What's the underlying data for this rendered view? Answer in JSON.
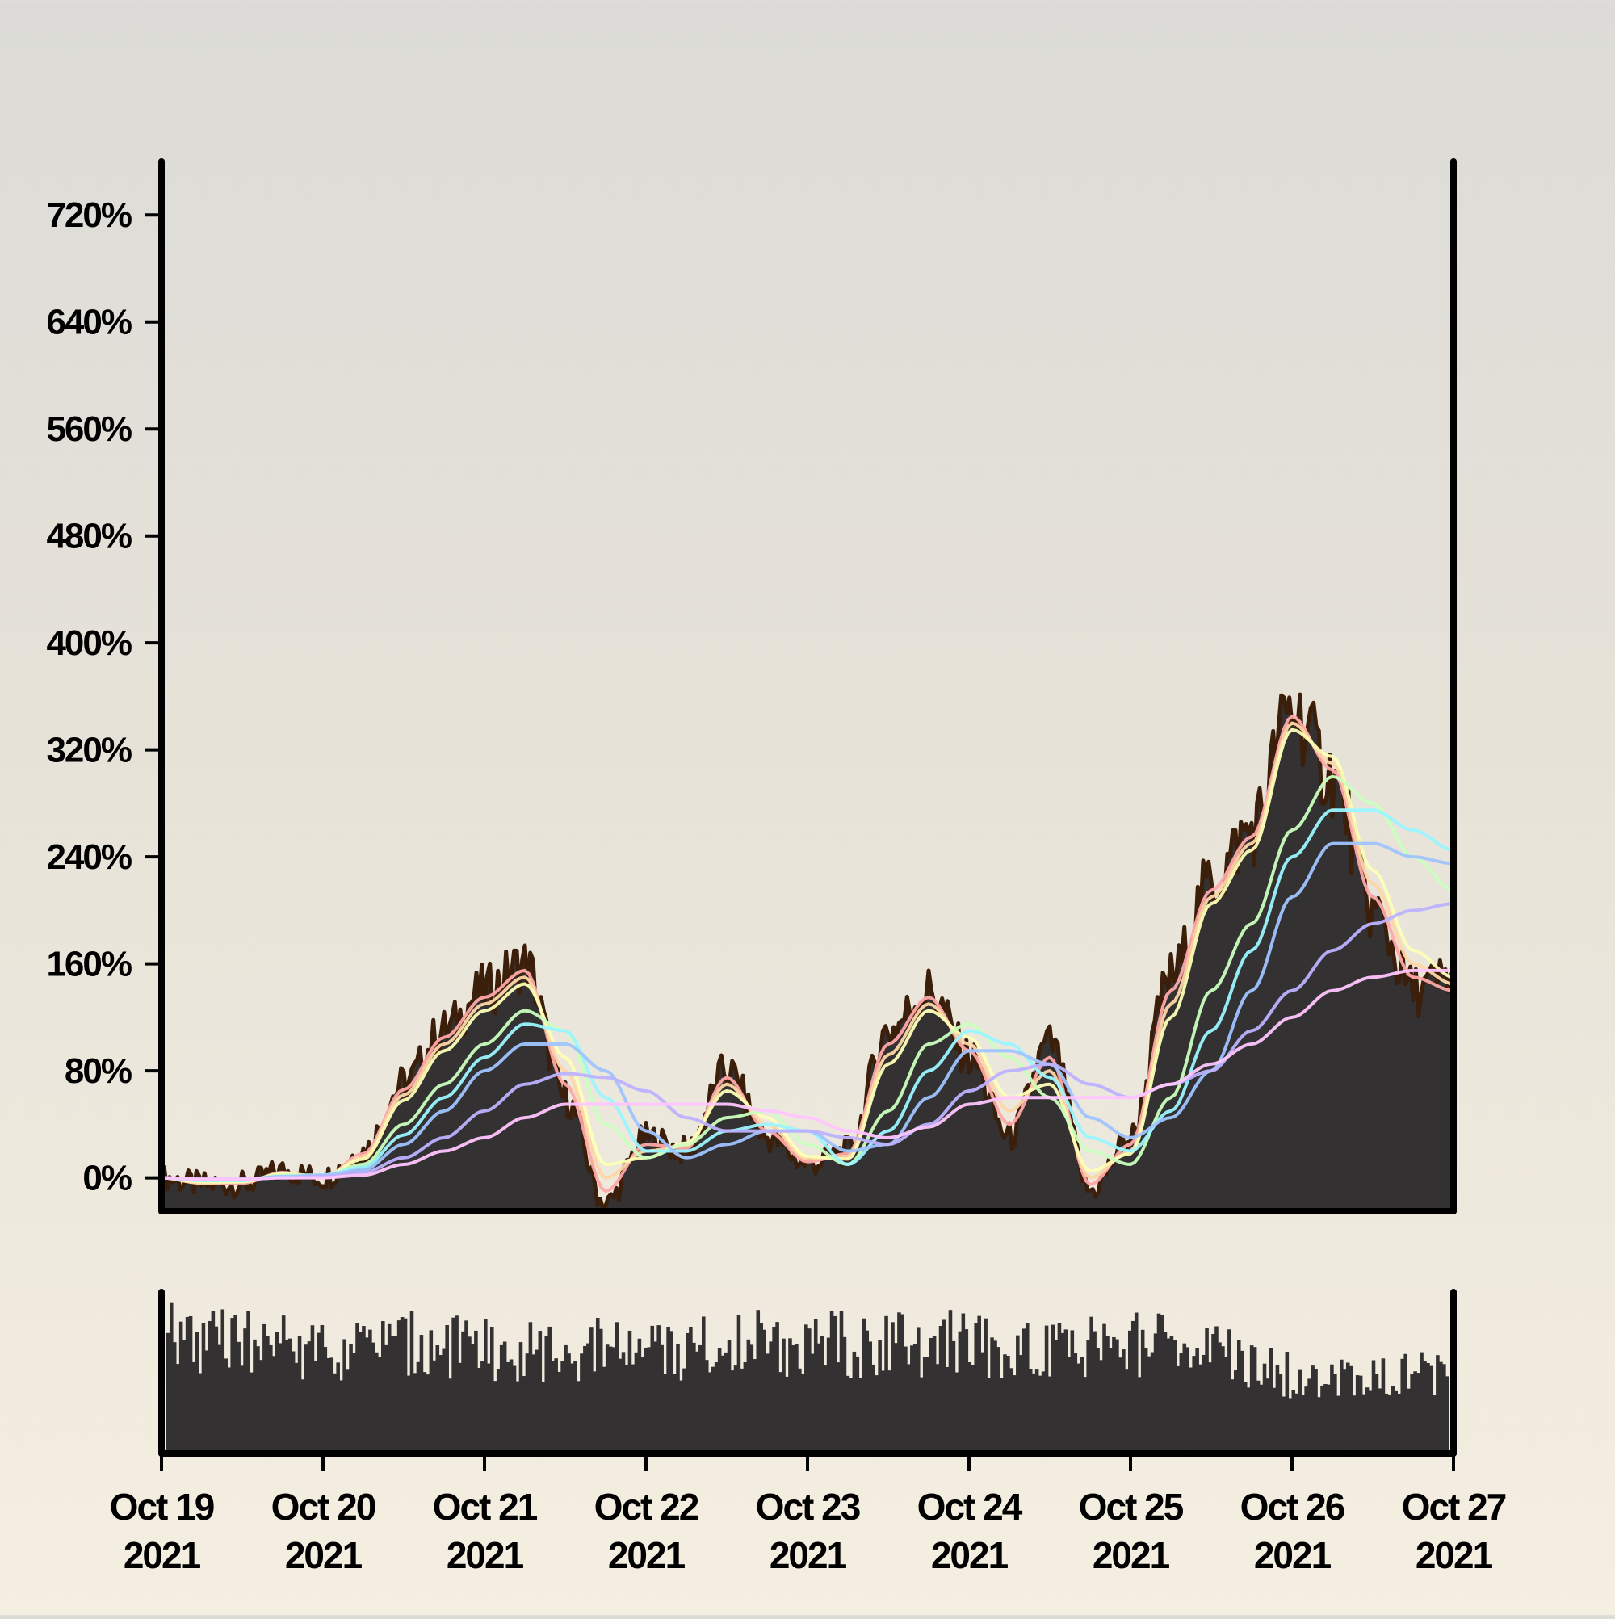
{
  "chart_data": [
    {
      "type": "area",
      "panel": "price",
      "title": "",
      "xlabel": "",
      "ylabel": "",
      "ylim": [
        -25,
        760
      ],
      "y_ticks": [
        0,
        80,
        160,
        240,
        320,
        400,
        480,
        560,
        640,
        720
      ],
      "y_tick_labels": [
        "0%",
        "80%",
        "160%",
        "240%",
        "320%",
        "400%",
        "480%",
        "560%",
        "640%",
        "720%"
      ],
      "grid": false,
      "legend": "none",
      "xlim": [
        "2021-10-19",
        "2021-10-27"
      ],
      "x_ticks": [
        "2021-10-19",
        "2021-10-20",
        "2021-10-21",
        "2021-10-22",
        "2021-10-23",
        "2021-10-24",
        "2021-10-25",
        "2021-10-26",
        "2021-10-27"
      ],
      "x_tick_labels": [
        [
          "Oct 19",
          "2021"
        ],
        [
          "Oct 20",
          "2021"
        ],
        [
          "Oct 21",
          "2021"
        ],
        [
          "Oct 22",
          "2021"
        ],
        [
          "Oct 23",
          "2021"
        ],
        [
          "Oct 24",
          "2021"
        ],
        [
          "Oct 25",
          "2021"
        ],
        [
          "Oct 26",
          "2021"
        ],
        [
          "Oct 27",
          "2021"
        ]
      ],
      "area_color": "#333132",
      "area_edge_color": "#3b1f0a",
      "series_colors": [
        "#ffa8a8",
        "#ffd6a5",
        "#fdffb6",
        "#caffbf",
        "#9bf6ff",
        "#a0c4ff",
        "#bdb2ff",
        "#ffc6ff"
      ],
      "x_days": [
        0,
        0.25,
        0.5,
        0.75,
        1,
        1.25,
        1.5,
        1.75,
        2,
        2.25,
        2.5,
        2.75,
        3,
        3.25,
        3.5,
        3.75,
        4,
        4.25,
        4.5,
        4.75,
        5,
        5.25,
        5.5,
        5.75,
        6,
        6.25,
        6.5,
        6.75,
        7,
        7.25,
        7.5,
        7.75,
        8
      ],
      "values": [
        0,
        -5,
        -5,
        5,
        0,
        20,
        70,
        110,
        140,
        160,
        60,
        -20,
        30,
        20,
        80,
        30,
        10,
        20,
        110,
        140,
        90,
        30,
        100,
        -10,
        30,
        150,
        220,
        260,
        350,
        300,
        200,
        140,
        150
      ],
      "moving_averages": [
        {
          "values": [
            0,
            -4,
            -4,
            4,
            0,
            18,
            66,
            105,
            135,
            155,
            70,
            -10,
            25,
            22,
            75,
            35,
            12,
            18,
            100,
            135,
            95,
            40,
            90,
            -5,
            25,
            140,
            215,
            255,
            345,
            305,
            210,
            150,
            140
          ]
        },
        {
          "values": [
            0,
            -4,
            -3,
            3,
            0,
            16,
            62,
            100,
            130,
            150,
            80,
            0,
            20,
            24,
            70,
            40,
            14,
            16,
            92,
            130,
            100,
            50,
            80,
            0,
            20,
            130,
            210,
            250,
            340,
            310,
            220,
            160,
            145
          ]
        },
        {
          "values": [
            0,
            -3,
            -3,
            3,
            1,
            14,
            58,
            95,
            125,
            145,
            90,
            10,
            15,
            26,
            65,
            45,
            16,
            14,
            85,
            125,
            105,
            60,
            70,
            5,
            18,
            120,
            205,
            245,
            335,
            315,
            230,
            170,
            150
          ]
        },
        {
          "values": [
            0,
            -2,
            -2,
            2,
            2,
            10,
            40,
            70,
            100,
            125,
            110,
            40,
            15,
            25,
            45,
            50,
            25,
            10,
            50,
            100,
            115,
            90,
            60,
            20,
            10,
            60,
            140,
            190,
            260,
            300,
            280,
            240,
            215
          ]
        },
        {
          "values": [
            0,
            -2,
            -2,
            1,
            2,
            8,
            32,
            60,
            90,
            115,
            110,
            60,
            20,
            20,
            35,
            40,
            35,
            10,
            35,
            80,
            110,
            100,
            75,
            30,
            20,
            50,
            110,
            170,
            240,
            275,
            275,
            260,
            245
          ]
        },
        {
          "values": [
            0,
            -1,
            -1,
            1,
            2,
            6,
            25,
            50,
            80,
            100,
            100,
            80,
            35,
            15,
            25,
            35,
            35,
            20,
            25,
            60,
            95,
            95,
            85,
            45,
            30,
            45,
            80,
            140,
            210,
            250,
            250,
            240,
            235
          ]
        },
        {
          "values": [
            0,
            -1,
            -1,
            0,
            1,
            4,
            15,
            30,
            50,
            70,
            78,
            75,
            65,
            45,
            35,
            35,
            35,
            30,
            25,
            40,
            65,
            80,
            85,
            70,
            60,
            70,
            80,
            110,
            140,
            170,
            190,
            200,
            205
          ]
        },
        {
          "values": [
            0,
            -1,
            -1,
            0,
            0,
            2,
            10,
            20,
            30,
            45,
            55,
            55,
            55,
            55,
            55,
            50,
            45,
            35,
            30,
            38,
            55,
            60,
            60,
            60,
            60,
            70,
            85,
            100,
            120,
            140,
            150,
            155,
            155
          ]
        }
      ]
    },
    {
      "type": "bar",
      "panel": "volume",
      "title": "",
      "xlabel": "",
      "ylabel": "",
      "grid": false,
      "bar_color": "#333132",
      "note_values": "relative volume, 0-1",
      "x_days": [
        0,
        0.5,
        1,
        1.5,
        2,
        2.5,
        3,
        3.5,
        4,
        4.5,
        5,
        5.5,
        6,
        6.5,
        7,
        7.5,
        8
      ],
      "values": [
        0.9,
        0.85,
        0.8,
        0.85,
        0.8,
        0.8,
        0.8,
        0.85,
        0.85,
        0.85,
        0.85,
        0.8,
        0.85,
        0.8,
        0.6,
        0.6,
        0.6
      ]
    }
  ]
}
